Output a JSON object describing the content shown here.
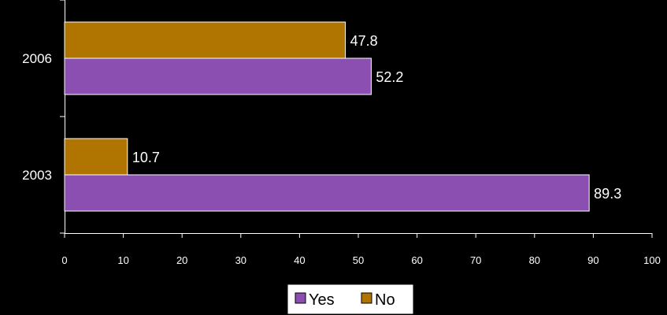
{
  "chart_data": {
    "type": "bar",
    "orientation": "horizontal",
    "categories": [
      "2006",
      "2003"
    ],
    "series": [
      {
        "name": "Yes",
        "values": [
          52.2,
          89.3
        ],
        "color": "#8a4fb0"
      },
      {
        "name": "No",
        "values": [
          47.8,
          10.7
        ],
        "color": "#b07400"
      }
    ],
    "xlim": [
      0,
      100
    ],
    "x_ticks": [
      "0",
      "10",
      "20",
      "30",
      "40",
      "50",
      "60",
      "70",
      "80",
      "90",
      "100"
    ],
    "data_labels": true,
    "grid": false,
    "legend_position": "bottom",
    "background": "#000000"
  }
}
